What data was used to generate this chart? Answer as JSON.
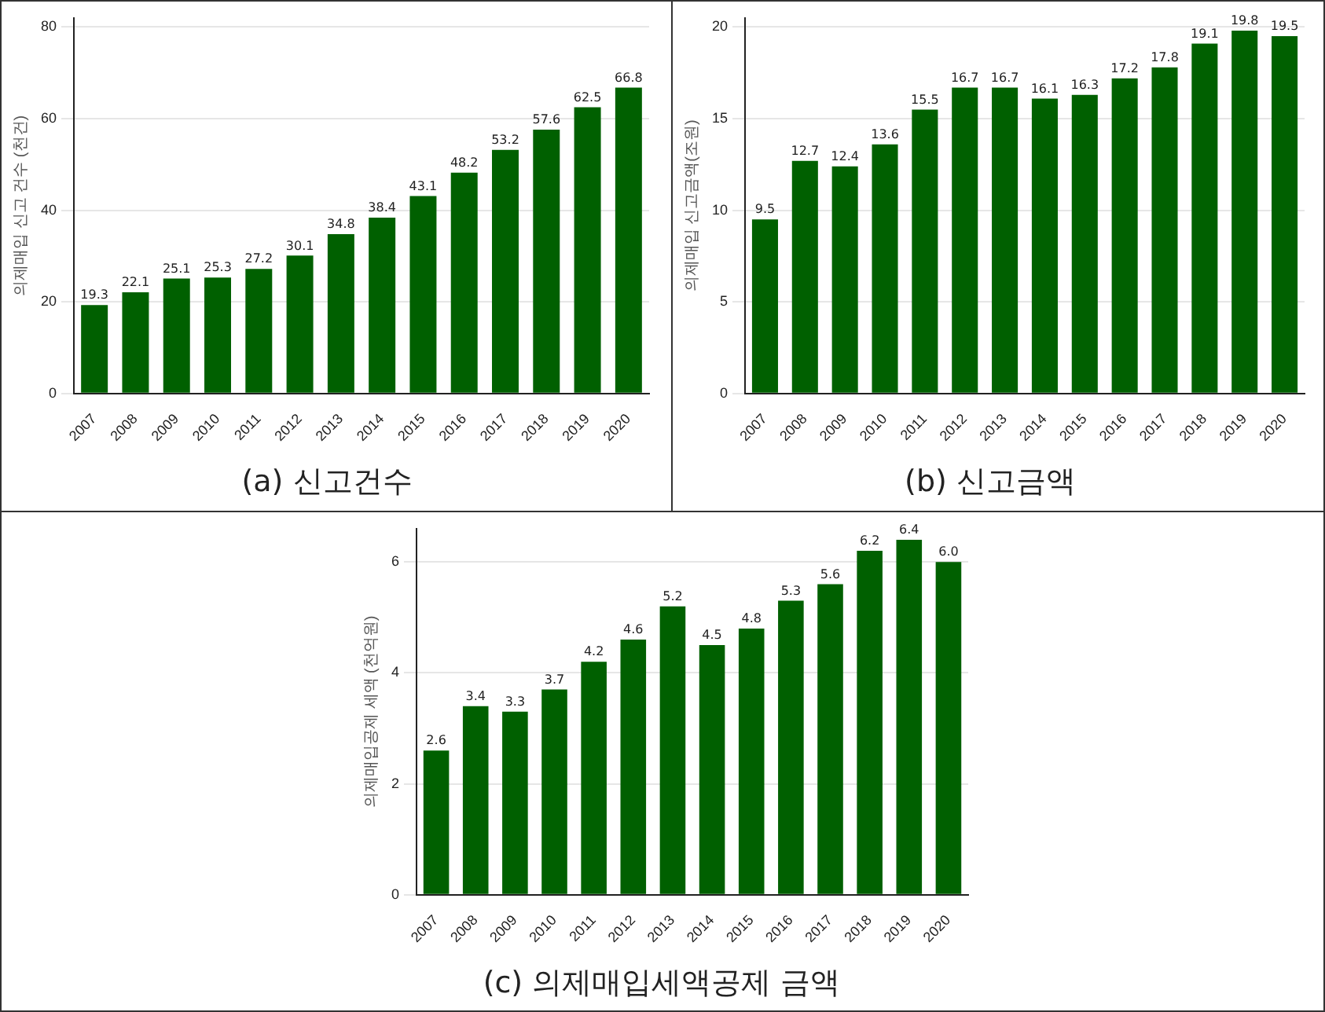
{
  "chart_data": [
    {
      "type": "bar",
      "title": "(a) 신고건수",
      "ylabel": "의제매입 신고 건수 (천건)",
      "categories": [
        "2007",
        "2008",
        "2009",
        "2010",
        "2011",
        "2012",
        "2013",
        "2014",
        "2015",
        "2016",
        "2017",
        "2018",
        "2019",
        "2020"
      ],
      "values": [
        19.3,
        22.1,
        25.1,
        25.3,
        27.2,
        30.1,
        34.8,
        38.4,
        43.1,
        48.2,
        53.2,
        57.6,
        62.5,
        66.8
      ],
      "color": "#006000",
      "ylim": [
        0,
        82
      ],
      "yticks": [
        0,
        20,
        40,
        60,
        80
      ],
      "grid": "y",
      "data_labels": true
    },
    {
      "type": "bar",
      "title": "(b) 신고금액",
      "ylabel": "의제매입 신고금액(조원)",
      "categories": [
        "2007",
        "2008",
        "2009",
        "2010",
        "2011",
        "2012",
        "2013",
        "2014",
        "2015",
        "2016",
        "2017",
        "2018",
        "2019",
        "2020"
      ],
      "values": [
        9.5,
        12.7,
        12.4,
        13.6,
        15.5,
        16.7,
        16.7,
        16.1,
        16.3,
        17.2,
        17.8,
        19.1,
        19.8,
        19.5
      ],
      "color": "#006000",
      "ylim": [
        0,
        20.5
      ],
      "yticks": [
        0,
        5,
        10,
        15,
        20
      ],
      "grid": "y",
      "data_labels": true
    },
    {
      "type": "bar",
      "title": "(c) 의제매입세액공제 금액",
      "ylabel": "의제매입공제 세액 (천억원)",
      "categories": [
        "2007",
        "2008",
        "2009",
        "2010",
        "2011",
        "2012",
        "2013",
        "2014",
        "2015",
        "2016",
        "2017",
        "2018",
        "2019",
        "2020"
      ],
      "values": [
        2.6,
        3.4,
        3.3,
        3.7,
        4.2,
        4.6,
        5.2,
        4.5,
        4.8,
        5.3,
        5.6,
        6.2,
        6.4,
        6.0
      ],
      "value_labels": [
        "2.6",
        "3.4",
        "3.3",
        "3.7",
        "4.2",
        "4.6",
        "5.2",
        "4.5",
        "4.8",
        "5.3",
        "5.6",
        "6.2",
        "6.4",
        "6.0"
      ],
      "color": "#006000",
      "ylim": [
        0,
        6.6
      ],
      "yticks": [
        0,
        2,
        4,
        6
      ],
      "grid": "y"
    }
  ]
}
